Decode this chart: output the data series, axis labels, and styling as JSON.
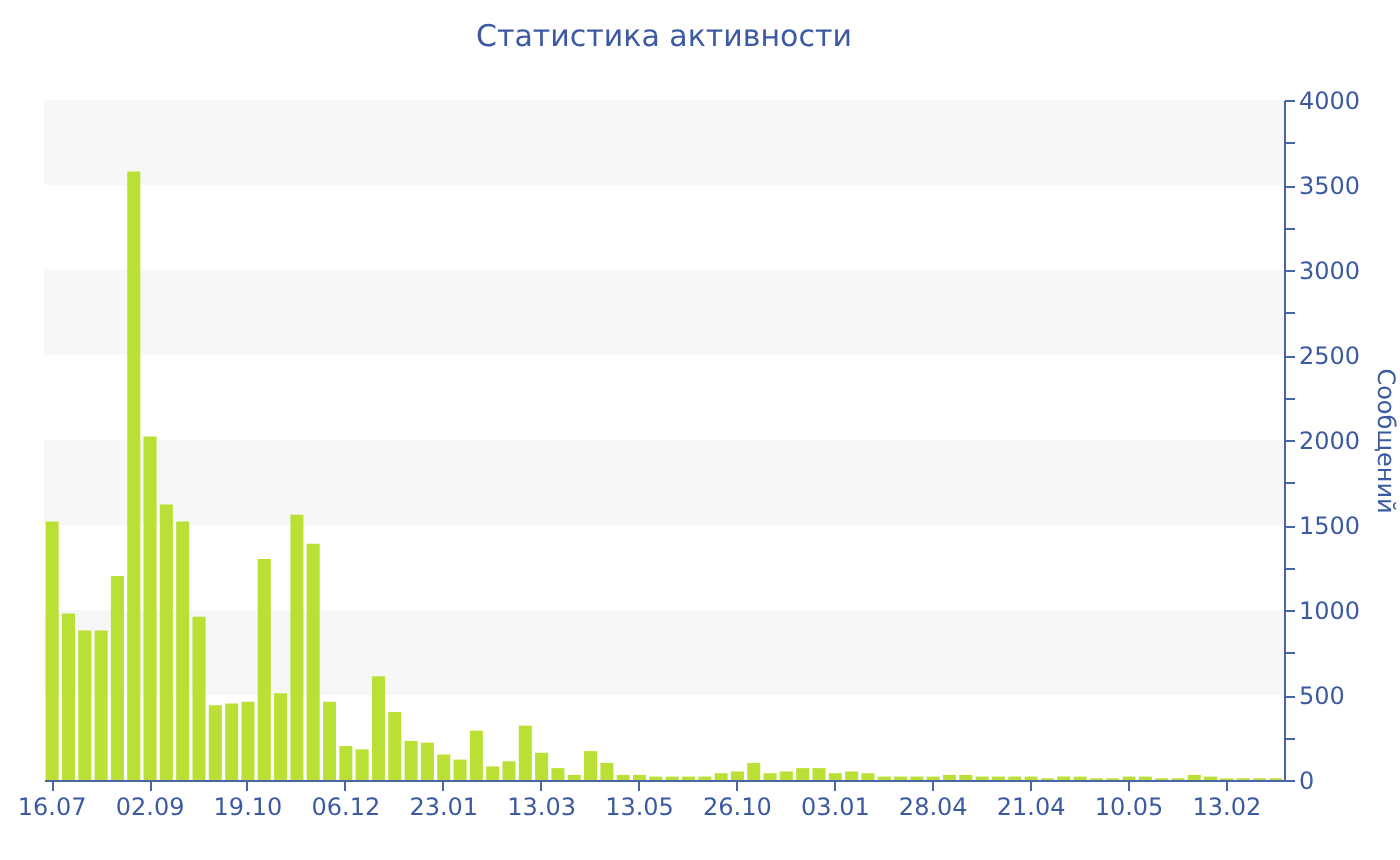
{
  "chart_data": {
    "type": "bar",
    "title": "Статистика активности",
    "ylabel": "Сообщений",
    "categories": [
      "16.07",
      null,
      null,
      null,
      null,
      null,
      "02.09",
      null,
      null,
      null,
      null,
      null,
      "19.10",
      null,
      null,
      null,
      null,
      null,
      "06.12",
      null,
      null,
      null,
      null,
      null,
      "23.01",
      null,
      null,
      null,
      null,
      null,
      "13.03",
      null,
      null,
      null,
      null,
      null,
      "13.05",
      null,
      null,
      null,
      null,
      null,
      "26.10",
      null,
      null,
      null,
      null,
      null,
      "03.01",
      null,
      null,
      null,
      null,
      null,
      "28.04",
      null,
      null,
      null,
      null,
      null,
      "21.04",
      null,
      null,
      null,
      null,
      null,
      "10.05",
      null,
      null,
      null,
      null,
      null,
      "13.02",
      null,
      null,
      null
    ],
    "values": [
      1520,
      980,
      880,
      880,
      1200,
      3580,
      2020,
      1620,
      1520,
      960,
      440,
      450,
      460,
      1300,
      510,
      1560,
      1390,
      460,
      200,
      180,
      610,
      400,
      230,
      220,
      150,
      120,
      290,
      80,
      110,
      320,
      160,
      70,
      30,
      170,
      100,
      30,
      30,
      20,
      20,
      20,
      20,
      40,
      50,
      100,
      40,
      50,
      70,
      70,
      40,
      50,
      40,
      20,
      20,
      20,
      20,
      30,
      30,
      20,
      20,
      20,
      20,
      10,
      20,
      20,
      10,
      10,
      20,
      20,
      10,
      10,
      30,
      20,
      10,
      10,
      10,
      10
    ],
    "color": "#bbe035",
    "ylim": [
      0,
      4000
    ],
    "yticks": [
      0,
      {
        "value": 250,
        "label": null
      },
      500,
      {
        "value": 750,
        "label": null
      },
      1000,
      {
        "value": 1250,
        "label": null
      },
      1500,
      {
        "value": 1750,
        "label": null
      },
      2000,
      {
        "value": 2250,
        "label": null
      },
      2500,
      {
        "value": 2750,
        "label": null
      },
      3000,
      {
        "value": 3250,
        "label": null
      },
      3500,
      {
        "value": 3750,
        "label": null
      },
      4000
    ],
    "bands": [
      {
        "axis": "y",
        "from": 500,
        "to": 1000,
        "color": "#f7f7f7"
      },
      {
        "axis": "y",
        "from": 1500,
        "to": 2000,
        "color": "#f7f7f7"
      },
      {
        "axis": "y",
        "from": 2500,
        "to": 3000,
        "color": "#f7f7f7"
      },
      {
        "axis": "y",
        "from": 3500,
        "to": 4000,
        "color": "#f7f7f7"
      }
    ]
  }
}
